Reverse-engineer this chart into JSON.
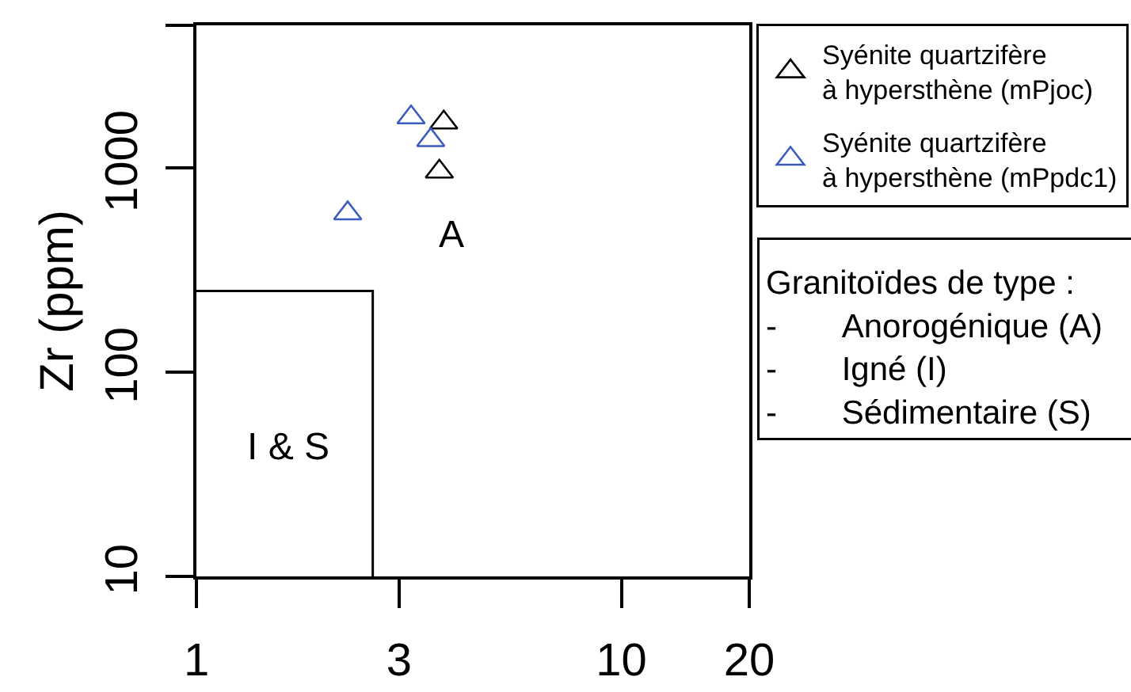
{
  "chart_data": {
    "type": "scatter",
    "ylabel": "Zr (ppm)",
    "log": "xy",
    "xlim": [
      1,
      20
    ],
    "xticks": [
      1,
      3,
      10,
      20
    ],
    "ylim": [
      10,
      5000
    ],
    "yticks": [
      10,
      100,
      1000,
      {
        "value": 5000,
        "label": null
      }
    ],
    "marker": "triangle",
    "legend": "right",
    "series": [
      {
        "name": "Syénite quartzifère\nà hypersthène (mPjoc)",
        "color": "#000000",
        "x": [
          3.82,
          3.73
        ],
        "values": [
          1670,
          960
        ]
      },
      {
        "name": "Syénite quartzifère\nà hypersthène (mPpdc1)",
        "color": "#3b5bbf",
        "x": [
          3.2,
          3.56,
          2.27
        ],
        "values": [
          1770,
          1370,
          600
        ]
      },
      {
        "type": "line",
        "marker": "none",
        "color": "#000000",
        "x": [
          1,
          2.6,
          2.6
        ],
        "values": [
          250,
          250,
          10
        ]
      }
    ],
    "annotations": [
      "A",
      "I & S",
      "Granitoïdes de type :\n-\tAnorogénique (A)\n-\tIgné (I)\n-\tSédimentaire (S)"
    ]
  }
}
